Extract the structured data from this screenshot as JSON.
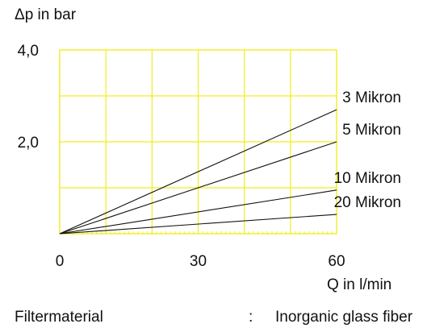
{
  "chart_data": {
    "type": "line",
    "title": "",
    "ylabel": "Δp in bar",
    "xlabel": "Q in l/min",
    "xlim": [
      0,
      60
    ],
    "ylim": [
      0,
      4.0
    ],
    "x_ticks": [
      {
        "value": 0,
        "label": "0"
      },
      {
        "value": 30,
        "label": "30"
      },
      {
        "value": 60,
        "label": "60"
      }
    ],
    "y_ticks": [
      {
        "value": 2.0,
        "label": "2,0"
      },
      {
        "value": 4.0,
        "label": "4,0"
      }
    ],
    "grid": true,
    "grid_x_step": 10,
    "grid_y_step": 1.0,
    "grid_color": "#f2ee1e",
    "line_color": "#111111",
    "series": [
      {
        "name": "3 Mikron",
        "x": [
          0,
          60
        ],
        "y": [
          0,
          2.7
        ]
      },
      {
        "name": "5 Mikron",
        "x": [
          0,
          60
        ],
        "y": [
          0,
          2.0
        ]
      },
      {
        "name": "10 Mikron",
        "x": [
          0,
          60
        ],
        "y": [
          0,
          0.95
        ]
      },
      {
        "name": "20 Mikron",
        "x": [
          0,
          60
        ],
        "y": [
          0,
          0.42
        ]
      }
    ]
  },
  "footer": {
    "label": "Filtermaterial",
    "separator": ":",
    "value": "Inorganic glass fiber"
  }
}
